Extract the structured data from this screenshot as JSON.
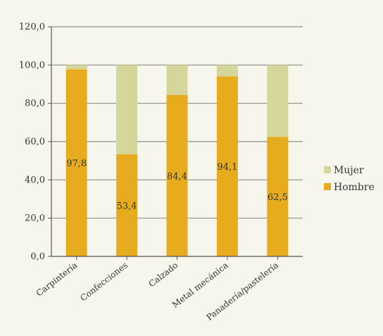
{
  "chart_data": {
    "type": "bar",
    "stacked": true,
    "categories": [
      "Carpintería",
      "Confecciones",
      "Calzado",
      "Metal mecánica",
      "Panadería/pastelería"
    ],
    "series": [
      {
        "name": "Hombre",
        "values": [
          97.8,
          53.4,
          84.4,
          94.1,
          62.5
        ],
        "color": "#e6ac1e",
        "show_labels": true
      },
      {
        "name": "Mujer",
        "values": [
          2.2,
          46.6,
          15.6,
          5.9,
          37.5
        ],
        "color": "#d5d699",
        "show_labels": false
      }
    ],
    "y_ticks": [
      "0,0",
      "20,0",
      "40,0",
      "60,0",
      "80,0",
      "100,0",
      "120,0"
    ],
    "ylim": [
      0,
      120
    ],
    "gridlines": true,
    "legend_position": "right",
    "legend_order": [
      "Mujer",
      "Hombre"
    ],
    "colors": {
      "background": "#f6f6ed",
      "gridline": "#8c8c8c",
      "axis": "#555555"
    }
  }
}
